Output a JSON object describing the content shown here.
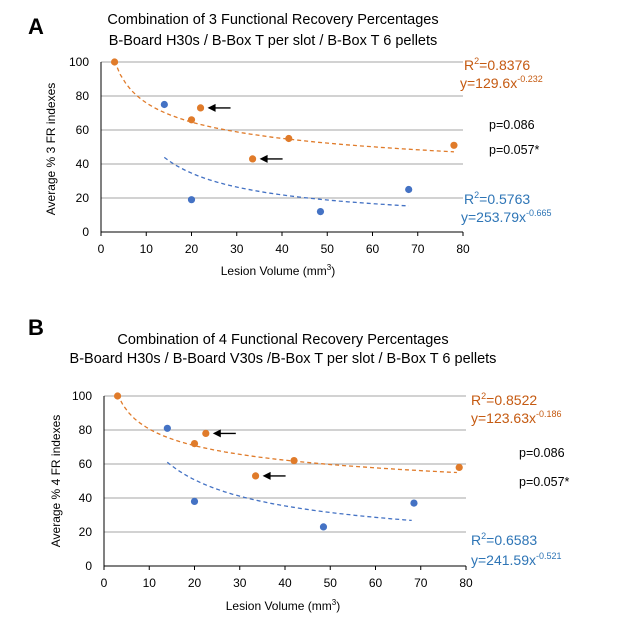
{
  "colors": {
    "orange": "#e07b2a",
    "blue": "#4472c4",
    "eq_orange": "#c55a11",
    "eq_blue": "#2e75b6",
    "grid": "#a6a6a6",
    "axis": "#000000"
  },
  "chart_data": [
    {
      "type": "scatter",
      "panel_label": "A",
      "title": "Combination of 3 Functional Recovery Percentages",
      "subtitle": "B-Board H30s / B-Box T per slot / B-Box T 6 pellets",
      "xlabel_text": "Lesion Volume (mm",
      "xlabel_sup": "3",
      "xlabel_close": ")",
      "ylabel": "Average % 3 FR indexes",
      "xlim": [
        0,
        80
      ],
      "ylim": [
        0,
        100
      ],
      "xticks": [
        "0",
        "10",
        "20",
        "30",
        "40",
        "50",
        "60",
        "70",
        "80"
      ],
      "yticks": [
        "0",
        "20",
        "40",
        "60",
        "80",
        "100"
      ],
      "grid": true,
      "series": [
        {
          "name": "orange",
          "color_key": "orange",
          "x": [
            3,
            20,
            22,
            33.5,
            41.5,
            78
          ],
          "y": [
            100,
            66,
            73,
            43,
            55,
            51
          ],
          "arrows": [
            2,
            3
          ],
          "fit": {
            "a": 129.6,
            "b": -0.232,
            "x_start": 3,
            "x_end": 78
          },
          "r2_label": "R",
          "r2_sup": "2",
          "r2_value": "=0.8376",
          "eq_base": "y=129.6x",
          "eq_exp": "-0.232"
        },
        {
          "name": "blue",
          "color_key": "blue",
          "x": [
            14,
            20,
            48.5,
            68
          ],
          "y": [
            75,
            19,
            12,
            25
          ],
          "arrows": [],
          "fit": {
            "a": 253.79,
            "b": -0.665,
            "x_start": 14,
            "x_end": 68
          },
          "r2_label": "R",
          "r2_sup": "2",
          "r2_value": "=0.5763",
          "eq_base": "y=253.79x",
          "eq_exp": "-0.665"
        }
      ],
      "p_values": [
        "p=0.086",
        "p=0.057*"
      ]
    },
    {
      "type": "scatter",
      "panel_label": "B",
      "title": "Combination of 4 Functional Recovery Percentages",
      "subtitle": "B-Board H30s / B-Board V30s /B-Box T per slot / B-Box T 6 pellets",
      "xlabel_text": "Lesion Volume (mm",
      "xlabel_sup": "3",
      "xlabel_close": ")",
      "ylabel": "Average % 4 FR indexes",
      "xlim": [
        0,
        80
      ],
      "ylim": [
        0,
        100
      ],
      "xticks": [
        "0",
        "10",
        "20",
        "30",
        "40",
        "50",
        "60",
        "70",
        "80"
      ],
      "yticks": [
        "0",
        "20",
        "40",
        "60",
        "80",
        "100"
      ],
      "grid": true,
      "series": [
        {
          "name": "orange",
          "color_key": "orange",
          "x": [
            3,
            20,
            22.5,
            33.5,
            42,
            78.5
          ],
          "y": [
            100,
            72,
            78,
            53,
            62,
            58
          ],
          "arrows": [
            2,
            3
          ],
          "fit": {
            "a": 123.63,
            "b": -0.186,
            "x_start": 3,
            "x_end": 78
          },
          "r2_label": "R",
          "r2_sup": "2",
          "r2_value": "=0.8522",
          "eq_base": "y=123.63x",
          "eq_exp": "-0.186"
        },
        {
          "name": "blue",
          "color_key": "blue",
          "x": [
            14,
            20,
            48.5,
            68.5
          ],
          "y": [
            81,
            38,
            23,
            37
          ],
          "arrows": [],
          "fit": {
            "a": 241.59,
            "b": -0.521,
            "x_start": 14,
            "x_end": 68
          },
          "r2_label": "R",
          "r2_sup": "2",
          "r2_value": "=0.6583",
          "eq_base": "y=241.59x",
          "eq_exp": "-0.521"
        }
      ],
      "p_values": [
        "p=0.086",
        "p=0.057*"
      ]
    }
  ]
}
